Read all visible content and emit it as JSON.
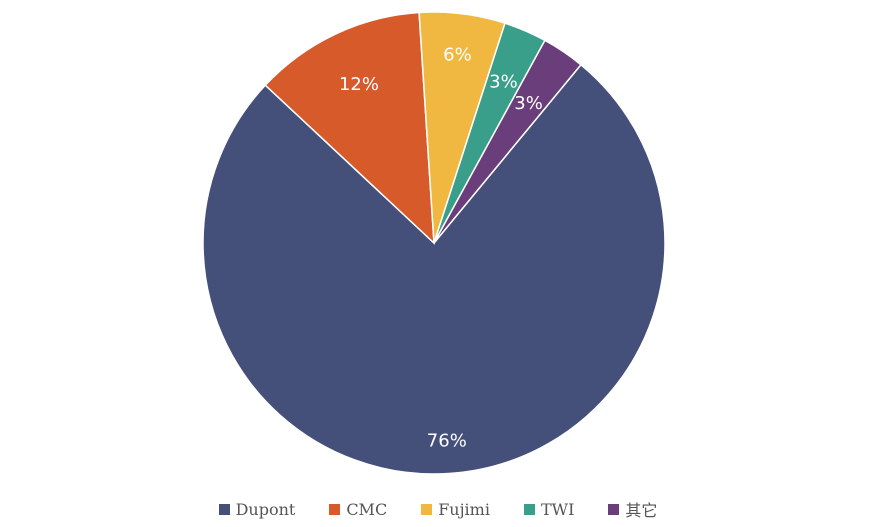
{
  "chart_data": {
    "type": "pie",
    "categories": [
      "Dupont",
      "CMC",
      "Fujimi",
      "TWI",
      "其它"
    ],
    "values": [
      76,
      12,
      6,
      3,
      3
    ],
    "labels": [
      "76%",
      "12%",
      "6%",
      "3%",
      "3%"
    ],
    "colors": [
      "#44507a",
      "#d75a2b",
      "#f0b840",
      "#3a9f8a",
      "#6a3e7a"
    ],
    "legend_position": "bottom"
  }
}
